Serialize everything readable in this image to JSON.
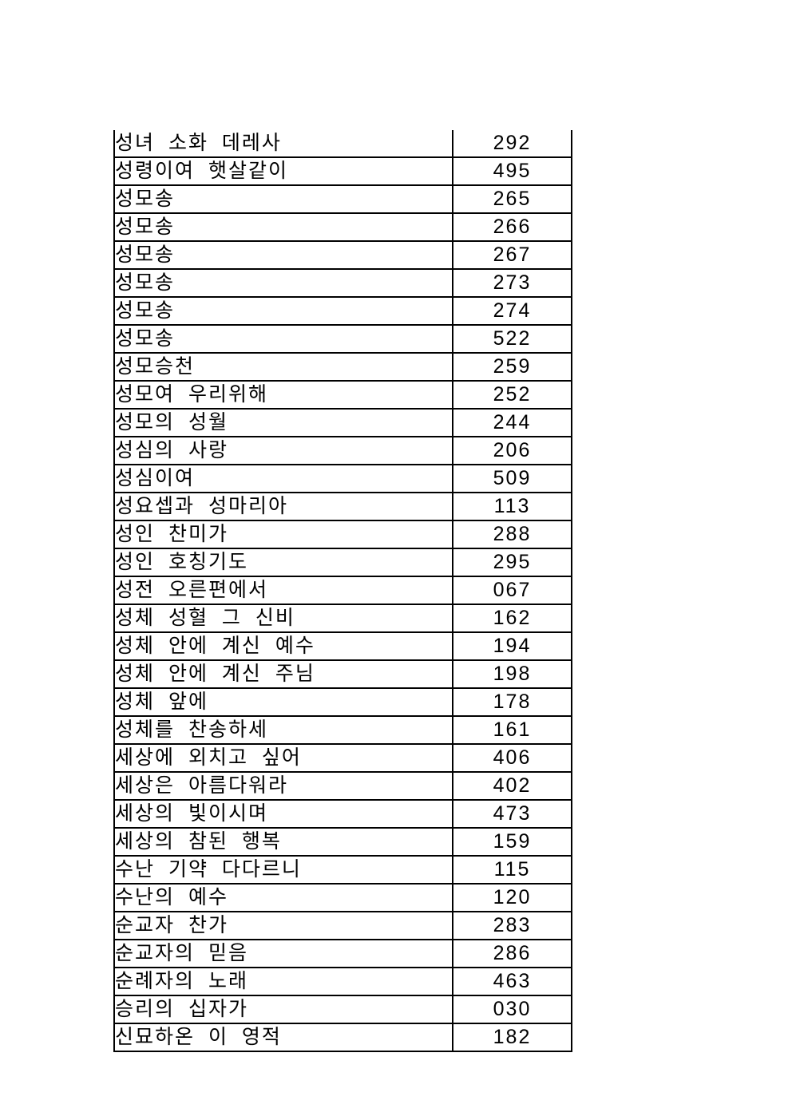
{
  "page": {
    "background_color": "#ffffff",
    "text_color": "#000000",
    "border_color": "#000000"
  },
  "table": {
    "rows": [
      {
        "title": "성녀 소화 데레사",
        "number": "292"
      },
      {
        "title": "성령이여 햇살같이",
        "number": "495"
      },
      {
        "title": "성모송",
        "number": "265"
      },
      {
        "title": "성모송",
        "number": "266"
      },
      {
        "title": "성모송",
        "number": "267"
      },
      {
        "title": "성모송",
        "number": "273"
      },
      {
        "title": "성모송",
        "number": "274"
      },
      {
        "title": "성모송",
        "number": "522"
      },
      {
        "title": "성모승천",
        "number": "259"
      },
      {
        "title": "성모여 우리위해",
        "number": "252"
      },
      {
        "title": "성모의 성월",
        "number": "244"
      },
      {
        "title": "성심의 사랑",
        "number": "206"
      },
      {
        "title": "성심이여",
        "number": "509"
      },
      {
        "title": "성요셉과 성마리아",
        "number": "113"
      },
      {
        "title": "성인 찬미가",
        "number": "288"
      },
      {
        "title": "성인 호칭기도",
        "number": "295"
      },
      {
        "title": "성전 오른편에서",
        "number": "067"
      },
      {
        "title": "성체 성혈 그 신비",
        "number": "162"
      },
      {
        "title": "성체 안에 계신 예수",
        "number": "194"
      },
      {
        "title": "성체 안에 계신 주님",
        "number": "198"
      },
      {
        "title": "성체 앞에",
        "number": "178"
      },
      {
        "title": "성체를 찬송하세",
        "number": "161"
      },
      {
        "title": "세상에 외치고 싶어",
        "number": "406"
      },
      {
        "title": "세상은 아름다워라",
        "number": "402"
      },
      {
        "title": "세상의 빛이시며",
        "number": "473"
      },
      {
        "title": "세상의 참된 행복",
        "number": "159"
      },
      {
        "title": "수난 기약 다다르니",
        "number": "115"
      },
      {
        "title": "수난의 예수",
        "number": "120"
      },
      {
        "title": "순교자 찬가",
        "number": "283"
      },
      {
        "title": "순교자의 믿음",
        "number": "286"
      },
      {
        "title": "순례자의 노래",
        "number": "463"
      },
      {
        "title": "승리의 십자가",
        "number": "030"
      },
      {
        "title": "신묘하온 이 영적",
        "number": "182"
      }
    ]
  }
}
